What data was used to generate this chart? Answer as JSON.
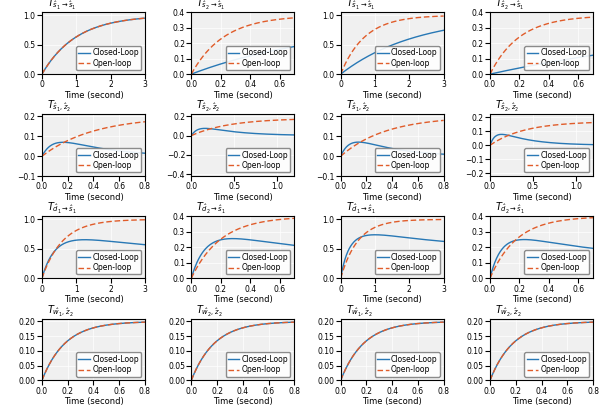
{
  "blue_color": "#2878b5",
  "orange_color": "#e05c2a",
  "bg_color": "#f0f0f0",
  "title_fontsize": 7,
  "label_fontsize": 6,
  "tick_fontsize": 5.5,
  "legend_fontsize": 5.5,
  "linewidth": 1.0,
  "row1_col1": {
    "title": "T_{\\hat{s}_1 \\rightarrow \\hat{s}_1}",
    "tlabel": "1",
    "xlim": [
      0,
      3
    ],
    "ylim": [
      0,
      1
    ],
    "yticks": [
      0,
      0.5,
      1
    ],
    "xticks": [
      0,
      1,
      2,
      3
    ],
    "cl_type": "step_resp_slow",
    "ol_type": "step_resp_slow_ol_same",
    "cl_params": {
      "tau": 1.0,
      "K": 1.0
    },
    "ol_params": {
      "tau": 1.0,
      "K": 1.0
    }
  },
  "row1_col2": {
    "title": "T_{\\hat{s}_2 \\rightarrow \\hat{s}_1}",
    "tlabel": "0.4",
    "xlim": [
      0,
      0.7
    ],
    "ylim": [
      0,
      0.4
    ],
    "yticks": [
      0,
      0.1,
      0.2,
      0.3,
      0.4
    ],
    "xticks": [
      0,
      0.2,
      0.4,
      0.6
    ],
    "cl_type": "step_resp_cross_cl",
    "ol_type": "step_resp_cross_ol_faster",
    "cl_params": {
      "tau": 0.8,
      "K": 0.33
    },
    "ol_params": {
      "tau": 0.25,
      "K": 0.38
    }
  },
  "row1_col3": {
    "title": "T_{\\hat{s}_1 \\rightarrow \\hat{s}_1}",
    "tlabel": "1",
    "xlim": [
      0,
      3
    ],
    "ylim": [
      0,
      1
    ],
    "yticks": [
      0,
      0.5,
      1
    ],
    "xticks": [
      0,
      1,
      2,
      3
    ],
    "cl_type": "step_resp_slow_slower",
    "ol_type": "step_resp_slow_ol_faster",
    "cl_params": {
      "tau": 1.8,
      "K": 1.0
    },
    "ol_params": {
      "tau": 0.8,
      "K": 1.0
    }
  },
  "row1_col4": {
    "title": "T_{\\hat{s}_2 \\rightarrow \\hat{s}_1}",
    "tlabel": "0.4",
    "xlim": [
      0,
      0.7
    ],
    "ylim": [
      0,
      0.4
    ],
    "yticks": [
      0,
      0.1,
      0.2,
      0.3,
      0.4
    ],
    "xticks": [
      0,
      0.2,
      0.4,
      0.6
    ],
    "cl_type": "step_resp_cross_cl2",
    "ol_type": "step_resp_cross_ol_faster2",
    "cl_params": {
      "tau": 1.5,
      "K": 0.38
    },
    "ol_params": {
      "tau": 0.22,
      "K": 0.38
    }
  },
  "row2_col1": {
    "title": "T_{\\hat{s}_1, \\hat{z}_2}",
    "xlim": [
      0,
      0.8
    ],
    "ylim": [
      -0.1,
      0.2
    ],
    "yticks": [
      -0.1,
      0,
      0.1,
      0.2
    ],
    "xticks": [
      0,
      0.2,
      0.4,
      0.6,
      0.8
    ],
    "cl_type": "cross_dip",
    "ol_type": "cross_ol_rise",
    "cl_params": {
      "peak": 0.13,
      "peak_t": 0.25,
      "tau_fall": 0.35
    },
    "ol_params": {
      "tau": 0.4,
      "K": 0.2
    }
  },
  "row2_col2": {
    "title": "T_{\\hat{s}_2, \\hat{z}_2}",
    "xlim": [
      0,
      1.2
    ],
    "ylim": [
      -0.4,
      0.2
    ],
    "yticks": [
      -0.4,
      -0.2,
      0,
      0.2
    ],
    "xticks": [
      0,
      0.5,
      1
    ],
    "cl_type": "cross_dip2",
    "ol_type": "cross_ol_rise2",
    "cl_params": {
      "peak": 0.12,
      "peak_t": 0.25,
      "tau_fall": 0.5
    },
    "ol_params": {
      "tau": 0.45,
      "K": 0.18
    }
  },
  "row2_col3": {
    "title": "T_{\\hat{s}_1, \\hat{z}_2}",
    "xlim": [
      0,
      0.8
    ],
    "ylim": [
      -0.1,
      0.2
    ],
    "yticks": [
      -0.1,
      0,
      0.1,
      0.2
    ],
    "xticks": [
      0,
      0.2,
      0.4,
      0.6,
      0.8
    ],
    "cl_type": "cross_dip3",
    "ol_type": "cross_ol_rise3",
    "cl_params": {
      "peak": 0.14,
      "peak_t": 0.25,
      "tau_fall": 0.3
    },
    "ol_params": {
      "tau": 0.4,
      "K": 0.2
    }
  },
  "row2_col4": {
    "title": "T_{\\hat{s}_2, \\hat{z}_2}",
    "xlim": [
      0,
      1.2
    ],
    "ylim": [
      -0.2,
      0.2
    ],
    "yticks": [
      -0.2,
      -0.1,
      0,
      0.1,
      0.2
    ],
    "xticks": [
      0,
      0.5,
      1
    ],
    "cl_type": "cross_dip4",
    "ol_type": "cross_ol_rise4",
    "cl_params": {
      "peak": 0.12,
      "peak_t": 0.22,
      "tau_fall": 0.45
    },
    "ol_params": {
      "tau": 0.45,
      "K": 0.18
    }
  },
  "row3_col1": {
    "title": "T_{\\hat{d}_1 \\rightarrow \\hat{s}_1}",
    "tlabel": "1",
    "xlim": [
      0,
      3
    ],
    "ylim": [
      0,
      1
    ],
    "yticks": [
      0,
      0.5,
      1
    ],
    "xticks": [
      0,
      1,
      2,
      3
    ],
    "cl_type": "step_resp_bump_cl",
    "ol_type": "step_resp_bump_ol",
    "cl_params": {
      "bump_peak": 0.4,
      "bump_t": 0.4,
      "settle": 0.42
    },
    "ol_params": {
      "tau": 0.6,
      "K": 1.0
    }
  },
  "row3_col2": {
    "title": "T_{\\hat{d}_2 \\rightarrow \\hat{s}_1}",
    "tlabel": "0.4",
    "xlim": [
      0,
      0.7
    ],
    "ylim": [
      0,
      0.4
    ],
    "yticks": [
      0,
      0.1,
      0.2,
      0.3,
      0.4
    ],
    "xticks": [
      0,
      0.2,
      0.4,
      0.6
    ],
    "cl_type": "step_resp_bump_cl2",
    "ol_type": "step_resp_bump_ol2",
    "cl_params": {
      "bump_peak": 0.22,
      "bump_t": 0.35,
      "settle": 0.15
    },
    "ol_params": {
      "tau": 0.2,
      "K": 0.4
    }
  },
  "row3_col3": {
    "title": "T_{\\hat{d}_1 \\rightarrow \\hat{s}_1}",
    "tlabel": "1",
    "xlim": [
      0,
      3
    ],
    "ylim": [
      0,
      1
    ],
    "yticks": [
      0,
      0.5,
      1
    ],
    "xticks": [
      0,
      1,
      2,
      3
    ],
    "cl_type": "step_resp_bump_cl3",
    "ol_type": "step_resp_bump_ol3",
    "cl_params": {
      "bump_peak": 0.42,
      "bump_t": 0.3,
      "settle": 0.5
    },
    "ol_params": {
      "tau": 0.5,
      "K": 1.0
    }
  },
  "row3_col4": {
    "title": "T_{\\hat{d}_2 \\rightarrow \\hat{s}_1}",
    "tlabel": "0.4",
    "xlim": [
      0,
      0.7
    ],
    "ylim": [
      0,
      0.4
    ],
    "yticks": [
      0,
      0.1,
      0.2,
      0.3,
      0.4
    ],
    "xticks": [
      0,
      0.2,
      0.4,
      0.6
    ],
    "cl_type": "step_resp_bump_cl4",
    "ol_type": "step_resp_bump_ol4",
    "cl_params": {
      "bump_peak": 0.22,
      "bump_t": 0.3,
      "settle": 0.15
    },
    "ol_params": {
      "tau": 0.2,
      "K": 0.4
    }
  },
  "row4_col1": {
    "title": "T_{\\hat{w}_1, \\hat{z}_2}",
    "xlim": [
      0,
      0.8
    ],
    "ylim": [
      0,
      0.2
    ],
    "yticks": [
      0,
      0.05,
      0.1,
      0.15,
      0.2
    ],
    "xticks": [
      0,
      0.2,
      0.4,
      0.6,
      0.8
    ],
    "cl_type": "step_rise_saturate",
    "ol_type": "step_rise_saturate",
    "cl_params": {
      "tau": 0.2,
      "K": 0.2
    },
    "ol_params": {
      "tau": 0.2,
      "K": 0.2
    }
  },
  "row4_col2": {
    "title": "T_{\\hat{w}_1, \\hat{z}_2}",
    "xlim": [
      0,
      0.8
    ],
    "ylim": [
      0,
      0.2
    ],
    "yticks": [
      0,
      0.05,
      0.1,
      0.15,
      0.2
    ],
    "xticks": [
      0,
      0.2,
      0.4,
      0.6,
      0.8
    ],
    "cl_type": "step_rise_saturate2",
    "ol_type": "step_rise_saturate2",
    "cl_params": {
      "tau": 0.2,
      "K": 0.2
    },
    "ol_params": {
      "tau": 0.2,
      "K": 0.2
    }
  },
  "row4_col3": {
    "title": "T_{\\hat{w}_1, \\hat{z}_2}",
    "xlim": [
      0,
      0.8
    ],
    "ylim": [
      0,
      0.2
    ],
    "yticks": [
      0,
      0.05,
      0.1,
      0.15,
      0.2
    ],
    "xticks": [
      0,
      0.2,
      0.4,
      0.6,
      0.8
    ],
    "cl_type": "step_rise_saturate3",
    "ol_type": "step_rise_saturate3",
    "cl_params": {
      "tau": 0.2,
      "K": 0.2
    },
    "ol_params": {
      "tau": 0.2,
      "K": 0.2
    }
  },
  "row4_col4": {
    "title": "T_{\\hat{w}_1, \\hat{z}_2}",
    "xlim": [
      0,
      0.8
    ],
    "ylim": [
      0,
      0.2
    ],
    "yticks": [
      0,
      0.05,
      0.1,
      0.15,
      0.2
    ],
    "xticks": [
      0,
      0.2,
      0.4,
      0.6,
      0.8
    ],
    "cl_type": "step_rise_saturate4",
    "ol_type": "step_rise_saturate4",
    "cl_params": {
      "tau": 0.2,
      "K": 0.2
    },
    "ol_params": {
      "tau": 0.2,
      "K": 0.2
    }
  }
}
